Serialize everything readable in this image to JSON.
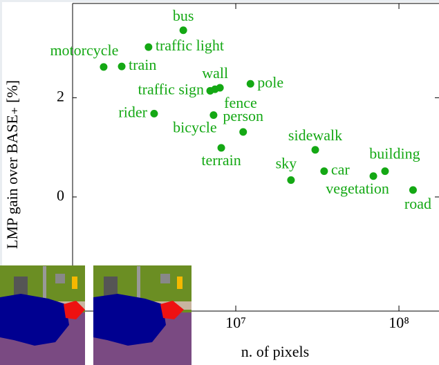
{
  "chart_data": {
    "type": "scatter",
    "x_label": "n. of pixels",
    "y_label": "LMP gain over BASE₊ [%]",
    "log_x": true,
    "color": "#14a814",
    "xlim": [
      1000000,
      176000000
    ],
    "ylim": [
      -2.3,
      3.9
    ],
    "xticks": [
      {
        "value": 10000000,
        "label": "10⁷"
      },
      {
        "value": 100000000,
        "label": "10⁸"
      }
    ],
    "yticks": [
      0,
      2
    ],
    "labels": [
      "bus",
      "traffic light",
      "motorcycle",
      "train",
      "wall",
      "traffic sign",
      "fence",
      "pole",
      "rider",
      "bicycle",
      "person",
      "terrain",
      "sidewalk",
      "sky",
      "car",
      "vegetation",
      "building",
      "road"
    ],
    "x": [
      4770000,
      2920000,
      1550000,
      2000000,
      8000000,
      6970000,
      7460000,
      12300000,
      3160000,
      7310000,
      11100000,
      8150000,
      30700000,
      21800000,
      34800000,
      69700000,
      82200000,
      122000000
    ],
    "y": [
      3.36,
      3.02,
      2.62,
      2.63,
      2.2,
      2.14,
      2.17,
      2.28,
      1.68,
      1.65,
      1.31,
      0.99,
      0.95,
      0.34,
      0.52,
      0.42,
      0.52,
      0.14
    ]
  }
}
